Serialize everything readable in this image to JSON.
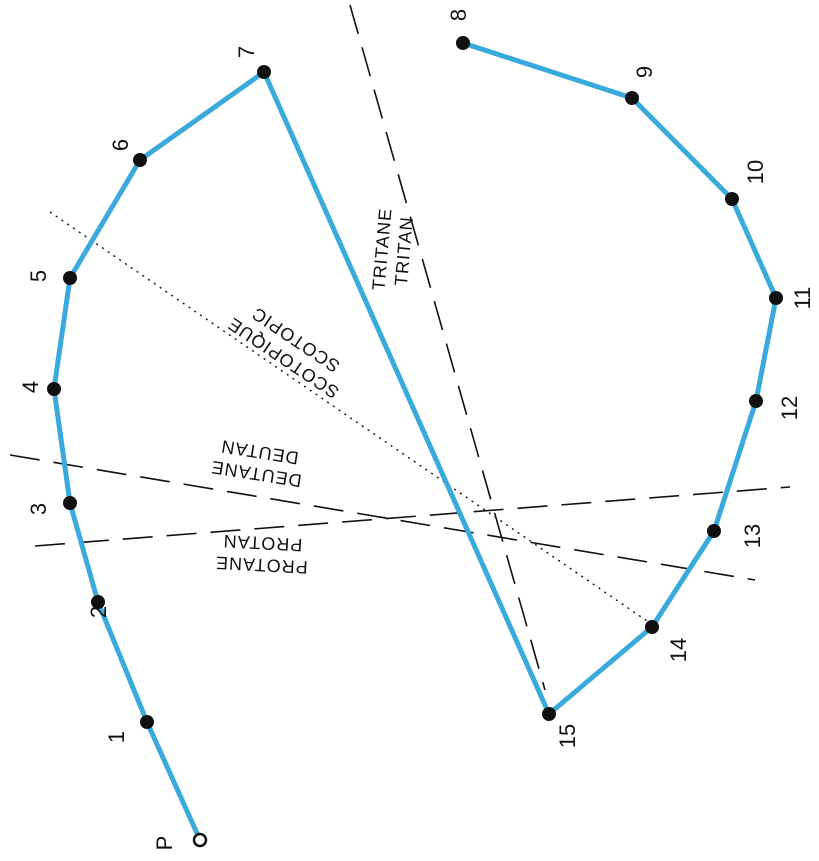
{
  "diagram": {
    "start_cap": "P",
    "caps": [
      "1",
      "2",
      "3",
      "4",
      "5",
      "6",
      "7",
      "8",
      "9",
      "10",
      "11",
      "12",
      "13",
      "14",
      "15"
    ],
    "sequence_line_color": "#3aa9dc",
    "axes": [
      {
        "key": "protan",
        "label_line1": "PROTANE",
        "label_line2": "PROTAN",
        "style": "dashed"
      },
      {
        "key": "deutan",
        "label_line1": "DEUTANE",
        "label_line2": "DEUTAN",
        "style": "dashed"
      },
      {
        "key": "tritan",
        "label_line1": "TRITANE",
        "label_line2": "TRITAN",
        "style": "dashed"
      },
      {
        "key": "scotopic",
        "label_line1": "SCOTOPIQUE",
        "label_line2": "SCOTOPIC",
        "style": "dotted"
      }
    ]
  }
}
